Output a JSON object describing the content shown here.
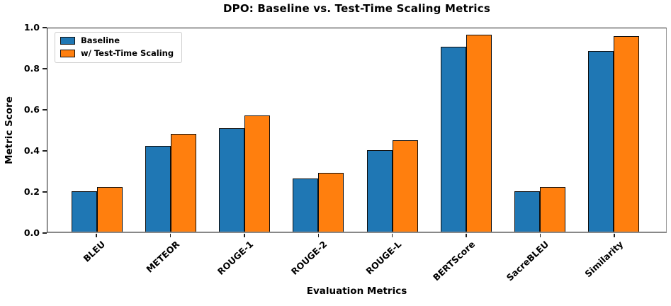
{
  "chart_data": {
    "type": "bar",
    "title": "DPO: Baseline vs. Test-Time Scaling Metrics",
    "xlabel": "Evaluation Metrics",
    "ylabel": "Metric Score",
    "ylim": [
      0.0,
      1.0
    ],
    "yticks": [
      "0.0",
      "0.2",
      "0.4",
      "0.6",
      "0.8",
      "1.0"
    ],
    "grid": false,
    "legend_position": "upper left",
    "bar_edge_color": "#0d0d0d",
    "categories": [
      "BLEU",
      "METEOR",
      "ROUGE-1",
      "ROUGE-2",
      "ROUGE-L",
      "BERTScore",
      "SacreBLEU",
      "Similarity"
    ],
    "series": [
      {
        "name": "Baseline",
        "color": "#1f77b4",
        "values": [
          0.2,
          0.42,
          0.51,
          0.26,
          0.4,
          0.91,
          0.2,
          0.89
        ]
      },
      {
        "name": "w/ Test-Time Scaling",
        "color": "#ff7f0e",
        "values": [
          0.22,
          0.48,
          0.57,
          0.29,
          0.45,
          0.97,
          0.22,
          0.96
        ]
      }
    ]
  }
}
